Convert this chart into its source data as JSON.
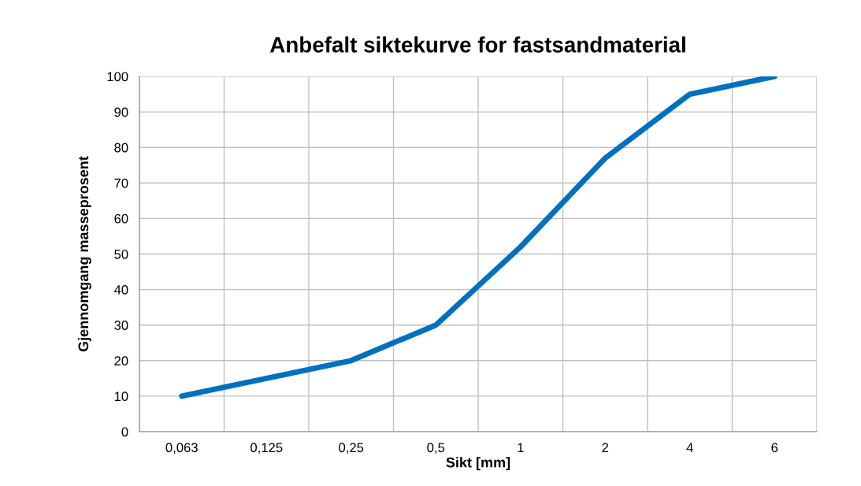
{
  "chart_data": {
    "type": "line",
    "title": "Anbefalt siktekurve for fastsandmaterial",
    "xlabel": "Sikt [mm]",
    "ylabel": "Gjennomgang masseprosent",
    "categories": [
      "0,063",
      "0,125",
      "0,25",
      "0,5",
      "1",
      "2",
      "4",
      "6"
    ],
    "series": [
      {
        "color": "#0070c0",
        "values": [
          10,
          15,
          20,
          30,
          52,
          77,
          95,
          100
        ]
      }
    ],
    "ylim": [
      0,
      100
    ],
    "yticks": [
      0,
      10,
      20,
      30,
      40,
      50,
      60,
      70,
      80,
      90,
      100
    ],
    "grid": true,
    "marker": "none",
    "line_style": "solid"
  }
}
